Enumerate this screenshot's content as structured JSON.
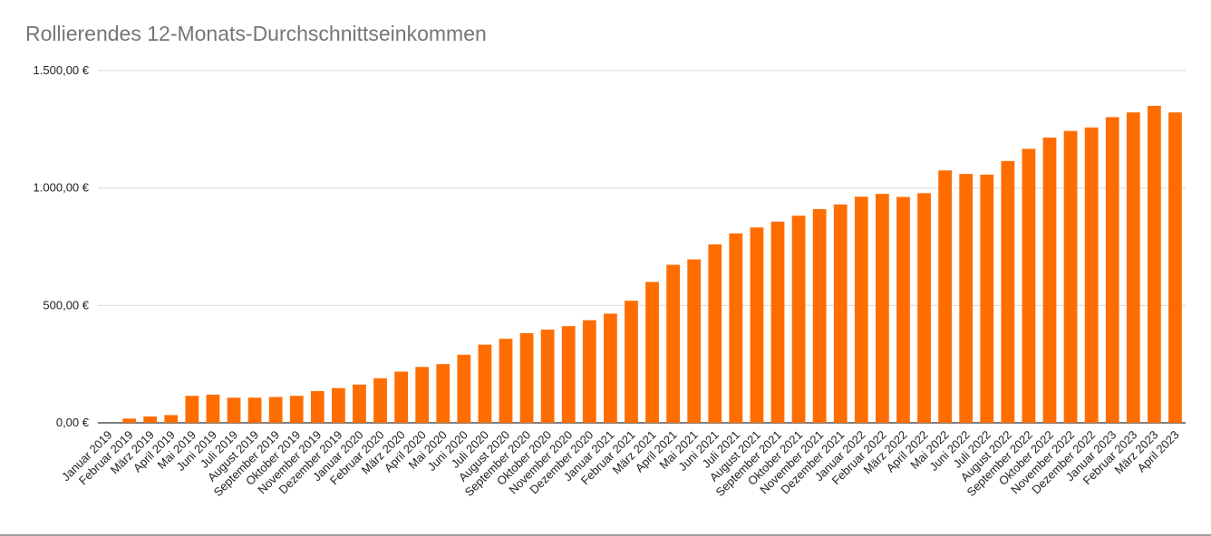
{
  "chart_data": {
    "type": "bar",
    "title": "Rollierendes 12-Monats-Durchschnittseinkommen",
    "xlabel": "",
    "ylabel": "",
    "ylim": [
      0,
      1500
    ],
    "grid": true,
    "bar_color": "#ff6d01",
    "y_ticks": [
      "0,00 €",
      "500,00 €",
      "1.000,00 €",
      "1.500,00 €"
    ],
    "categories": [
      "Januar 2019",
      "Februar 2019",
      "März 2019",
      "April 2019",
      "Mai 2019",
      "Juni 2019",
      "Juli 2019",
      "August 2019",
      "September 2019",
      "Oktober 2019",
      "November 2019",
      "Dezember 2019",
      "Januar 2020",
      "Februar 2020",
      "März 2020",
      "April 2020",
      "Mai 2020",
      "Juni 2020",
      "Juli 2020",
      "August 2020",
      "September 2020",
      "Oktober 2020",
      "November 2020",
      "Dezember 2020",
      "Januar 2021",
      "Februar 2021",
      "März 2021",
      "April 2021",
      "Mai 2021",
      "Juni 2021",
      "Juli 2021",
      "August 2021",
      "September 2021",
      "Oktober 2021",
      "November 2021",
      "Dezember 2021",
      "Januar 2022",
      "Februar 2022",
      "März 2022",
      "April 2022",
      "Mai 2022",
      "Juni 2022",
      "Juli 2022",
      "August 2022",
      "September 2022",
      "Oktober 2022",
      "November 2022",
      "Dezember 2022",
      "Januar 2023",
      "Februar 2023",
      "März 2023",
      "April 2023"
    ],
    "values": [
      0,
      18,
      27,
      33,
      115,
      120,
      107,
      107,
      110,
      115,
      135,
      148,
      163,
      190,
      218,
      238,
      250,
      290,
      333,
      358,
      382,
      397,
      412,
      437,
      465,
      520,
      600,
      673,
      696,
      760,
      807,
      832,
      857,
      882,
      910,
      930,
      963,
      975,
      962,
      978,
      1075,
      1060,
      1057,
      1115,
      1167,
      1215,
      1243,
      1258,
      1302,
      1322,
      1350,
      1322
    ]
  }
}
